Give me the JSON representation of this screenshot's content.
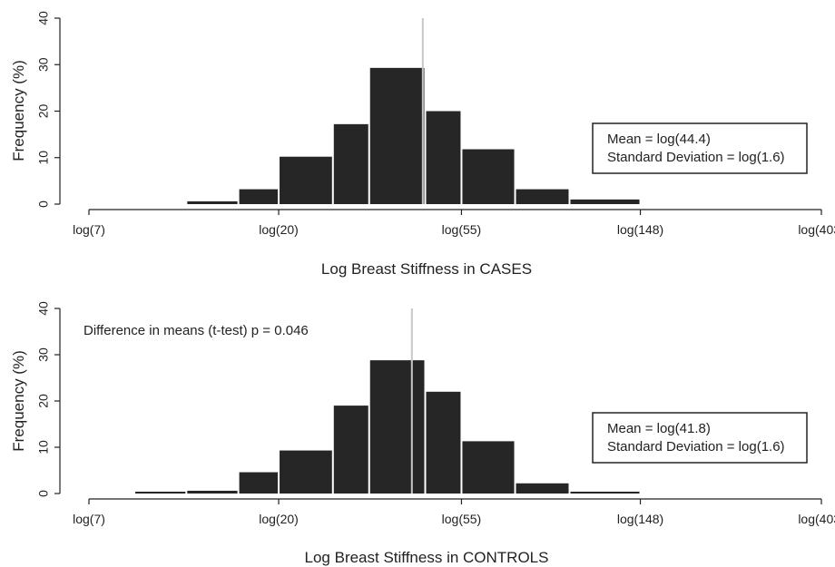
{
  "chart_data": [
    {
      "type": "bar",
      "xlabel": "Log Breast Stiffness in CASES",
      "ylabel": "Frequency (%)",
      "ylim": [
        0,
        40
      ],
      "yticks": [
        "0",
        "10",
        "20",
        "30",
        "40"
      ],
      "x_scale": "log",
      "xlim": [
        7,
        403
      ],
      "xticks": [
        {
          "value": 7,
          "label": "log(7)"
        },
        {
          "value": 20,
          "label": "log(20)"
        },
        {
          "value": 55,
          "label": "log(55)"
        },
        {
          "value": 148,
          "label": "log(148)"
        },
        {
          "value": 403,
          "label": "log(403)"
        }
      ],
      "bins": [
        {
          "from": 7,
          "to": 9,
          "value": 0
        },
        {
          "from": 9,
          "to": 12,
          "value": 0
        },
        {
          "from": 12,
          "to": 16,
          "value": 0.6
        },
        {
          "from": 16,
          "to": 20,
          "value": 3.2
        },
        {
          "from": 20,
          "to": 27,
          "value": 10.2
        },
        {
          "from": 27,
          "to": 33,
          "value": 17.2
        },
        {
          "from": 33,
          "to": 45,
          "value": 29.3
        },
        {
          "from": 45,
          "to": 55,
          "value": 20
        },
        {
          "from": 55,
          "to": 74,
          "value": 11.8
        },
        {
          "from": 74,
          "to": 100,
          "value": 3.2
        },
        {
          "from": 100,
          "to": 148,
          "value": 1
        }
      ],
      "mean_line": 44.4,
      "legend_box": [
        "Mean = log(44.4)",
        "Standard Deviation = log(1.6)"
      ],
      "grid": false
    },
    {
      "type": "bar",
      "xlabel": "Log Breast Stiffness in CONTROLS",
      "ylabel": "Frequency (%)",
      "ylim": [
        0,
        40
      ],
      "yticks": [
        "0",
        "10",
        "20",
        "30",
        "40"
      ],
      "x_scale": "log",
      "xlim": [
        7,
        403
      ],
      "xticks": [
        {
          "value": 7,
          "label": "log(7)"
        },
        {
          "value": 20,
          "label": "log(20)"
        },
        {
          "value": 55,
          "label": "log(55)"
        },
        {
          "value": 148,
          "label": "log(148)"
        },
        {
          "value": 403,
          "label": "log(403)"
        }
      ],
      "bins": [
        {
          "from": 7,
          "to": 9,
          "value": 0
        },
        {
          "from": 9,
          "to": 12,
          "value": 0.4
        },
        {
          "from": 12,
          "to": 16,
          "value": 0.6
        },
        {
          "from": 16,
          "to": 20,
          "value": 4.6
        },
        {
          "from": 20,
          "to": 27,
          "value": 9.3
        },
        {
          "from": 27,
          "to": 33,
          "value": 19
        },
        {
          "from": 33,
          "to": 45,
          "value": 28.8
        },
        {
          "from": 45,
          "to": 55,
          "value": 22
        },
        {
          "from": 55,
          "to": 74,
          "value": 11.3
        },
        {
          "from": 74,
          "to": 100,
          "value": 2.2
        },
        {
          "from": 100,
          "to": 148,
          "value": 0.4
        }
      ],
      "mean_line": 41.8,
      "annotation": "Difference in means (t-test) p = 0.046",
      "legend_box": [
        "Mean = log(41.8)",
        "Standard Deviation = log(1.6)"
      ],
      "grid": false
    }
  ]
}
